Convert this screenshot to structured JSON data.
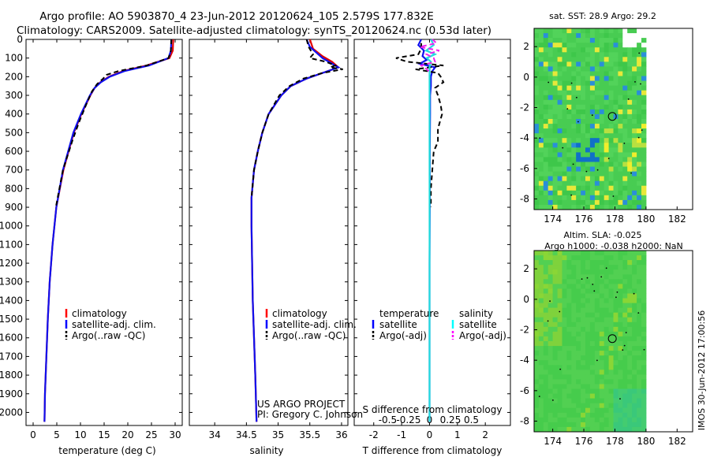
{
  "header": {
    "line1": "Argo profile: AO 5903870_4 23-Jun-2012 20120624_105 2.579S 177.832E",
    "line2": "Climatology: CARS2009. Satellite-adjusted climatology: synTS_20120624.nc (0.53d later)"
  },
  "side_stamp": "IMOS 30-Jun-2012 17:00:56",
  "credit": {
    "line1": "US ARGO PROJECT",
    "line2": "PI: Gregory C. Johnson"
  },
  "colors": {
    "climatology": "#ff0000",
    "satellite": "#0000ff",
    "argo": "#000000",
    "sal_satellite": "#00ffff",
    "sal_argo": "#ff00ff"
  },
  "chart_data": [
    {
      "id": "temperature",
      "type": "line",
      "xlabel": "temperature (deg C)",
      "ylabel": "",
      "xlim": [
        -1.5,
        31.5
      ],
      "ylim": [
        2070,
        0
      ],
      "xticks": [
        0,
        5,
        10,
        15,
        20,
        25,
        30
      ],
      "yticks": [
        0,
        100,
        200,
        300,
        400,
        500,
        600,
        700,
        800,
        900,
        1000,
        1100,
        1200,
        1300,
        1400,
        1500,
        1600,
        1700,
        1800,
        1900,
        2000
      ],
      "legend": {
        "position": "bottom-center",
        "entries": [
          "climatology",
          "satellite-adj. clim.",
          "Argo(..raw -QC)"
        ]
      },
      "series": [
        {
          "name": "climatology",
          "color": "red",
          "depth": [
            0,
            60,
            100,
            140,
            170,
            200,
            230,
            260,
            300,
            400,
            500,
            700,
            900,
            1100,
            1300,
            1500,
            1700,
            1900,
            2050
          ],
          "values": [
            29.6,
            29.5,
            28.8,
            24,
            19,
            16,
            14.2,
            13,
            12.1,
            10.2,
            8.6,
            6.4,
            4.9,
            4.1,
            3.5,
            3.1,
            2.8,
            2.5,
            2.4
          ]
        },
        {
          "name": "satellite-adj. clim.",
          "color": "blue",
          "depth": [
            0,
            60,
            100,
            140,
            170,
            200,
            230,
            260,
            300,
            400,
            500,
            700,
            900,
            1100,
            1300,
            1500,
            1700,
            1900,
            2050
          ],
          "values": [
            29.2,
            29.1,
            28.6,
            24.5,
            19.3,
            16.2,
            14.3,
            13,
            12,
            10.1,
            8.5,
            6.3,
            4.9,
            4.1,
            3.5,
            3.1,
            2.8,
            2.5,
            2.4
          ]
        },
        {
          "name": "Argo(..raw -QC)",
          "color": "black",
          "dash": true,
          "depth": [
            0,
            60,
            100,
            140,
            170,
            190,
            210,
            240,
            280,
            350,
            450,
            550,
            700,
            900
          ],
          "values": [
            29.2,
            29.1,
            28.6,
            24,
            18,
            15.5,
            14.8,
            13.5,
            12.4,
            11.2,
            9.6,
            8.2,
            6.3,
            4.8
          ]
        }
      ]
    },
    {
      "id": "salinity",
      "type": "line",
      "xlabel": "salinity",
      "ylabel": "",
      "xlim": [
        33.6,
        36.1
      ],
      "ylim": [
        2070,
        0
      ],
      "xticks": [
        34,
        34.5,
        35,
        35.5,
        36
      ],
      "xticklabels": [
        "34",
        "34.5",
        "35",
        "35.5",
        "36"
      ],
      "legend": {
        "position": "bottom-center",
        "entries": [
          "climatology",
          "satellite-adj. clim.",
          "Argo(..raw -QC)"
        ]
      },
      "series": [
        {
          "name": "climatology",
          "color": "red",
          "depth": [
            0,
            50,
            90,
            120,
            150,
            180,
            210,
            250,
            300,
            400,
            500,
            600,
            700,
            850,
            1000,
            1200,
            1400,
            1600,
            1800,
            2050
          ],
          "values": [
            35.5,
            35.55,
            35.7,
            35.85,
            35.95,
            35.7,
            35.45,
            35.2,
            35.05,
            34.85,
            34.75,
            34.68,
            34.62,
            34.58,
            34.58,
            34.59,
            34.6,
            34.62,
            34.64,
            34.66
          ]
        },
        {
          "name": "satellite-adj. clim.",
          "color": "blue",
          "depth": [
            0,
            40,
            70,
            100,
            130,
            150,
            180,
            210,
            250,
            300,
            400,
            500,
            600,
            700,
            850,
            1000,
            1200,
            1400,
            1600,
            1800,
            2050
          ],
          "values": [
            35.45,
            35.5,
            35.6,
            35.7,
            35.85,
            35.95,
            35.7,
            35.45,
            35.2,
            35.05,
            34.85,
            34.75,
            34.68,
            34.62,
            34.58,
            34.58,
            34.59,
            34.6,
            34.62,
            34.64,
            34.66
          ]
        },
        {
          "name": "Argo(..raw -QC)",
          "color": "black",
          "dash": true,
          "depth": [
            0,
            40,
            80,
            100,
            120,
            140,
            150,
            160,
            180,
            210,
            250,
            300,
            400,
            500,
            600,
            700,
            850
          ],
          "values": [
            35.45,
            35.48,
            35.55,
            35.5,
            35.75,
            35.9,
            35.82,
            36.02,
            35.7,
            35.4,
            35.18,
            35.02,
            34.85,
            34.75,
            34.68,
            34.62,
            34.58
          ]
        }
      ]
    },
    {
      "id": "difference",
      "type": "line",
      "xlabel": "T difference from climatology",
      "xlabel2": "S difference from climatology",
      "xlim": [
        -2.7,
        2.9
      ],
      "ylim": [
        2070,
        0
      ],
      "xticks": [
        -2,
        -1,
        0,
        1,
        2
      ],
      "xticklabels": [
        "-2",
        "-1",
        "0",
        "1",
        "2"
      ],
      "sticks": [
        -1.5,
        -0.75,
        0,
        0.75,
        1.5
      ],
      "sticklabels": [
        "-0.5",
        "-0.25",
        "0",
        "0.25",
        "0.5"
      ],
      "legend": {
        "position": "bottom",
        "temperature_title": "temperature",
        "salinity_title": "salinity",
        "temperature_entries": [
          "satellite",
          "Argo(-adj)"
        ],
        "salinity_entries": [
          "satellite",
          "Argo(-adj)"
        ]
      },
      "series": [
        {
          "name": "T satellite",
          "color": "blue",
          "depth": [
            0,
            30,
            60,
            90,
            110,
            130,
            150,
            170,
            200,
            250,
            300,
            400,
            600,
            900,
            1200,
            1600,
            2050
          ],
          "values": [
            -0.3,
            -0.4,
            -0.2,
            -0.25,
            -0.1,
            -0.35,
            0.2,
            0.1,
            0.05,
            0.05,
            0.02,
            0.02,
            0.01,
            0.01,
            0,
            0,
            0
          ]
        },
        {
          "name": "T Argo(-adj)",
          "color": "black",
          "dash": true,
          "depth": [
            20,
            50,
            80,
            100,
            120,
            140,
            160,
            180,
            200,
            230,
            260,
            300,
            350,
            400,
            480,
            550,
            600,
            700,
            800,
            900
          ],
          "values": [
            -0.3,
            -0.3,
            -0.4,
            -1.2,
            -0.8,
            0.5,
            -0.5,
            0.3,
            0.4,
            0.5,
            0.2,
            0.3,
            0.4,
            0.45,
            0.3,
            0.3,
            0.15,
            0.1,
            0.05,
            0.05
          ]
        },
        {
          "name": "S satellite",
          "color": "cyan",
          "depth": [
            0,
            30,
            60,
            80,
            100,
            120,
            150,
            200,
            300,
            400,
            600,
            900,
            1200,
            1600,
            2050
          ],
          "values": [
            0.05,
            0.15,
            -0.12,
            0.2,
            -0.1,
            0.05,
            0,
            0,
            0,
            0,
            0,
            0,
            0,
            0,
            0
          ]
        },
        {
          "name": "S Argo(-adj)",
          "color": "magenta",
          "dash": true,
          "depth": [
            0,
            20,
            40,
            60,
            80,
            100,
            120,
            140,
            160,
            180
          ],
          "values": [
            0.1,
            0.25,
            -0.35,
            0.35,
            -0.1,
            0.15,
            0.2,
            -0.3,
            -0.1,
            0.05
          ]
        }
      ]
    },
    {
      "id": "sst_map",
      "type": "heatmap",
      "title": "sat. SST: 28.9 Argo: 29.2",
      "xlim": [
        172.8,
        183
      ],
      "ylim": [
        -8.7,
        3.2
      ],
      "xticks": [
        174,
        176,
        178,
        180,
        182
      ],
      "yticks": [
        2,
        0,
        -2,
        -4,
        -6,
        -8
      ],
      "argo_position": [
        177.832,
        -2.579
      ]
    },
    {
      "id": "sla_map",
      "type": "heatmap",
      "title": "Altim. SLA: -0.025",
      "subtitle": "Argo h1000: -0.038 h2000: NaN",
      "xlim": [
        172.8,
        183
      ],
      "ylim": [
        -8.7,
        3.2
      ],
      "xticks": [
        174,
        176,
        178,
        180,
        182
      ],
      "yticks": [
        2,
        0,
        -2,
        -4,
        -6,
        -8
      ],
      "argo_position": [
        177.832,
        -2.579
      ]
    }
  ]
}
